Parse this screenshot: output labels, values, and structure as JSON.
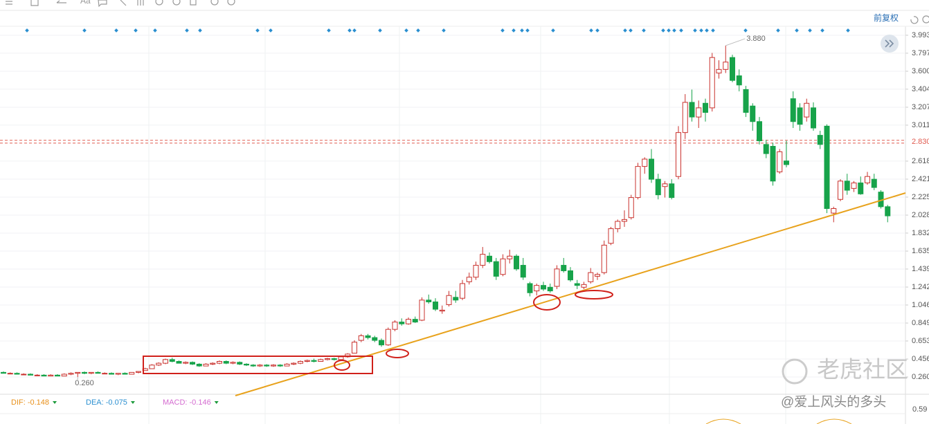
{
  "chart_data": {
    "type": "candlestick",
    "up_color": "#c9302c",
    "down_color": "#17a34a",
    "categories": [
      null,
      null,
      null,
      null,
      null,
      null,
      null,
      null,
      null,
      null,
      null,
      null,
      null,
      null,
      null,
      null,
      null,
      null,
      null,
      null,
      null,
      null,
      null,
      null,
      null,
      null,
      null,
      null,
      null,
      null,
      null,
      null,
      null,
      null,
      null,
      null,
      null,
      null,
      null,
      null,
      null,
      null,
      null,
      null,
      null,
      null,
      null,
      null,
      null,
      null,
      null,
      null,
      null,
      null,
      null,
      null,
      null,
      null,
      null,
      null,
      null,
      null,
      null,
      null,
      null,
      null,
      null,
      null,
      null,
      null,
      null,
      null,
      null,
      null,
      null,
      null,
      null,
      null,
      null,
      null,
      null,
      null,
      null,
      null,
      null,
      null,
      null,
      null,
      null,
      null,
      null,
      null,
      null,
      null,
      null,
      null,
      null,
      null,
      null,
      null,
      null,
      null,
      null,
      null,
      null,
      null,
      null,
      null,
      null,
      null,
      null,
      null,
      null,
      null,
      null,
      null,
      null,
      null,
      null,
      null,
      null,
      null,
      null,
      null,
      null,
      null,
      null,
      null,
      null,
      null,
      null,
      null
    ],
    "ohlc": [
      [
        0.31,
        0.32,
        0.3,
        0.3
      ],
      [
        0.3,
        0.31,
        0.29,
        0.3
      ],
      [
        0.3,
        0.31,
        0.29,
        0.29
      ],
      [
        0.29,
        0.3,
        0.28,
        0.29
      ],
      [
        0.29,
        0.3,
        0.28,
        0.28
      ],
      [
        0.28,
        0.29,
        0.27,
        0.28
      ],
      [
        0.28,
        0.29,
        0.27,
        0.27
      ],
      [
        0.27,
        0.29,
        0.27,
        0.28
      ],
      [
        0.28,
        0.29,
        0.27,
        0.27
      ],
      [
        0.27,
        0.3,
        0.27,
        0.29
      ],
      [
        0.29,
        0.31,
        0.28,
        0.3
      ],
      [
        0.3,
        0.31,
        0.26,
        0.31
      ],
      [
        0.31,
        0.32,
        0.29,
        0.3
      ],
      [
        0.3,
        0.31,
        0.29,
        0.31
      ],
      [
        0.31,
        0.32,
        0.3,
        0.3
      ],
      [
        0.3,
        0.31,
        0.29,
        0.3
      ],
      [
        0.3,
        0.31,
        0.29,
        0.29
      ],
      [
        0.29,
        0.3,
        0.28,
        0.3
      ],
      [
        0.3,
        0.31,
        0.29,
        0.29
      ],
      [
        0.29,
        0.31,
        0.29,
        0.31
      ],
      [
        0.31,
        0.32,
        0.3,
        0.32
      ],
      [
        0.33,
        0.36,
        0.33,
        0.35
      ],
      [
        0.35,
        0.4,
        0.35,
        0.39
      ],
      [
        0.39,
        0.42,
        0.38,
        0.41
      ],
      [
        0.41,
        0.46,
        0.4,
        0.45
      ],
      [
        0.45,
        0.47,
        0.42,
        0.43
      ],
      [
        0.43,
        0.44,
        0.41,
        0.41
      ],
      [
        0.41,
        0.43,
        0.4,
        0.42
      ],
      [
        0.42,
        0.43,
        0.39,
        0.4
      ],
      [
        0.4,
        0.41,
        0.37,
        0.38
      ],
      [
        0.38,
        0.41,
        0.38,
        0.4
      ],
      [
        0.4,
        0.42,
        0.39,
        0.41
      ],
      [
        0.41,
        0.44,
        0.4,
        0.43
      ],
      [
        0.43,
        0.44,
        0.4,
        0.41
      ],
      [
        0.41,
        0.43,
        0.4,
        0.42
      ],
      [
        0.42,
        0.43,
        0.39,
        0.4
      ],
      [
        0.4,
        0.41,
        0.38,
        0.39
      ],
      [
        0.39,
        0.4,
        0.37,
        0.38
      ],
      [
        0.38,
        0.4,
        0.37,
        0.39
      ],
      [
        0.39,
        0.4,
        0.37,
        0.38
      ],
      [
        0.38,
        0.4,
        0.37,
        0.39
      ],
      [
        0.39,
        0.4,
        0.37,
        0.38
      ],
      [
        0.38,
        0.41,
        0.38,
        0.4
      ],
      [
        0.4,
        0.42,
        0.39,
        0.41
      ],
      [
        0.41,
        0.44,
        0.4,
        0.43
      ],
      [
        0.43,
        0.45,
        0.42,
        0.44
      ],
      [
        0.44,
        0.46,
        0.42,
        0.43
      ],
      [
        0.43,
        0.46,
        0.43,
        0.45
      ],
      [
        0.45,
        0.47,
        0.44,
        0.46
      ],
      [
        0.46,
        0.47,
        0.44,
        0.45
      ],
      [
        0.45,
        0.49,
        0.44,
        0.48
      ],
      [
        0.48,
        0.52,
        0.47,
        0.51
      ],
      [
        0.52,
        0.66,
        0.52,
        0.64
      ],
      [
        0.66,
        0.73,
        0.64,
        0.71
      ],
      [
        0.71,
        0.73,
        0.67,
        0.69
      ],
      [
        0.69,
        0.71,
        0.64,
        0.66
      ],
      [
        0.66,
        0.68,
        0.59,
        0.61
      ],
      [
        0.61,
        0.8,
        0.6,
        0.78
      ],
      [
        0.78,
        0.88,
        0.76,
        0.86
      ],
      [
        0.86,
        0.9,
        0.82,
        0.84
      ],
      [
        0.84,
        0.91,
        0.83,
        0.89
      ],
      [
        0.89,
        0.92,
        0.85,
        0.86
      ],
      [
        0.88,
        1.13,
        0.87,
        1.1
      ],
      [
        1.1,
        1.16,
        1.06,
        1.08
      ],
      [
        1.08,
        1.12,
        0.98,
        1.0
      ],
      [
        0.98,
        1.04,
        0.95,
        0.99
      ],
      [
        1.05,
        1.2,
        1.03,
        1.15
      ],
      [
        1.13,
        1.2,
        1.07,
        1.1
      ],
      [
        1.12,
        1.32,
        1.1,
        1.28
      ],
      [
        1.3,
        1.4,
        1.27,
        1.35
      ],
      [
        1.35,
        1.52,
        1.32,
        1.48
      ],
      [
        1.48,
        1.68,
        1.45,
        1.6
      ],
      [
        1.58,
        1.62,
        1.5,
        1.52
      ],
      [
        1.52,
        1.56,
        1.32,
        1.36
      ],
      [
        1.38,
        1.6,
        1.36,
        1.55
      ],
      [
        1.55,
        1.65,
        1.5,
        1.58
      ],
      [
        1.58,
        1.6,
        1.42,
        1.44
      ],
      [
        1.48,
        1.56,
        1.32,
        1.35
      ],
      [
        1.28,
        1.3,
        1.14,
        1.18
      ],
      [
        1.2,
        1.28,
        1.15,
        1.26
      ],
      [
        1.26,
        1.3,
        1.2,
        1.22
      ],
      [
        1.24,
        1.28,
        1.18,
        1.2
      ],
      [
        1.25,
        1.48,
        1.22,
        1.44
      ],
      [
        1.48,
        1.56,
        1.4,
        1.42
      ],
      [
        1.42,
        1.46,
        1.3,
        1.32
      ],
      [
        1.28,
        1.32,
        1.22,
        1.26
      ],
      [
        1.24,
        1.3,
        1.22,
        1.27
      ],
      [
        1.3,
        1.45,
        1.28,
        1.4
      ],
      [
        1.36,
        1.4,
        1.32,
        1.38
      ],
      [
        1.4,
        1.75,
        1.38,
        1.7
      ],
      [
        1.72,
        1.9,
        1.7,
        1.88
      ],
      [
        1.88,
        1.98,
        1.84,
        1.96
      ],
      [
        1.96,
        2.08,
        1.9,
        1.98
      ],
      [
        2.0,
        2.25,
        1.98,
        2.22
      ],
      [
        2.22,
        2.6,
        2.2,
        2.56
      ],
      [
        2.56,
        2.66,
        2.48,
        2.64
      ],
      [
        2.64,
        2.75,
        2.38,
        2.42
      ],
      [
        2.42,
        2.48,
        2.2,
        2.25
      ],
      [
        2.34,
        2.4,
        2.22,
        2.37
      ],
      [
        2.37,
        2.42,
        2.2,
        2.22
      ],
      [
        2.45,
        3.0,
        2.42,
        2.93
      ],
      [
        2.93,
        3.35,
        2.86,
        3.26
      ],
      [
        3.26,
        3.4,
        3.05,
        3.1
      ],
      [
        3.1,
        3.28,
        2.98,
        3.2
      ],
      [
        3.25,
        3.3,
        3.05,
        3.15
      ],
      [
        3.2,
        3.8,
        3.16,
        3.75
      ],
      [
        3.58,
        3.72,
        3.52,
        3.62
      ],
      [
        3.62,
        3.88,
        3.58,
        3.7
      ],
      [
        3.75,
        3.78,
        3.48,
        3.5
      ],
      [
        3.55,
        3.62,
        3.38,
        3.45
      ],
      [
        3.4,
        3.44,
        3.1,
        3.15
      ],
      [
        3.22,
        3.25,
        2.95,
        3.05
      ],
      [
        3.05,
        3.1,
        2.8,
        2.84
      ],
      [
        2.8,
        2.85,
        2.65,
        2.7
      ],
      [
        2.78,
        2.82,
        2.35,
        2.4
      ],
      [
        2.5,
        2.75,
        2.48,
        2.72
      ],
      [
        2.62,
        2.84,
        2.55,
        2.58
      ],
      [
        3.3,
        3.38,
        2.98,
        3.05
      ],
      [
        3.2,
        3.25,
        2.95,
        3.02
      ],
      [
        3.1,
        3.3,
        3.05,
        3.25
      ],
      [
        3.2,
        3.26,
        2.95,
        2.98
      ],
      [
        2.9,
        2.95,
        2.75,
        2.8
      ],
      [
        3.0,
        3.02,
        2.05,
        2.1
      ],
      [
        2.05,
        2.12,
        1.95,
        2.1
      ],
      [
        2.2,
        2.42,
        2.18,
        2.4
      ],
      [
        2.4,
        2.48,
        2.25,
        2.3
      ],
      [
        2.32,
        2.4,
        2.28,
        2.38
      ],
      [
        2.38,
        2.45,
        2.25,
        2.26
      ],
      [
        2.38,
        2.5,
        2.36,
        2.45
      ],
      [
        2.42,
        2.48,
        2.3,
        2.33
      ],
      [
        2.28,
        2.3,
        2.1,
        2.12
      ],
      [
        2.12,
        2.14,
        1.95,
        2.02
      ]
    ],
    "ylim": [
      0.071,
      4.091
    ],
    "yticks": [
      3.993,
      3.797,
      {
        "value": 3.6,
        "label": "3.600"
      },
      3.404,
      3.207,
      3.011,
      2.618,
      2.421,
      2.225,
      2.028,
      1.832,
      1.635,
      1.439,
      1.242,
      1.046,
      0.849,
      0.653,
      0.456,
      {
        "value": 0.26,
        "label": "0.260"
      }
    ],
    "grid": true,
    "ref_line": {
      "value": 2.83,
      "label": "2.830",
      "color": "#e05a4f"
    },
    "max_label": {
      "value": 3.88,
      "label": "3.880"
    },
    "min_label": {
      "value": 0.26,
      "label": "0.260"
    },
    "indicators": [
      {
        "label": "DIF: -0.148",
        "color": "#e8901a"
      },
      {
        "label": "DEA: -0.075",
        "color": "#2b8fd0"
      },
      {
        "label": "MACD: -0.146",
        "color": "#d46bd0"
      }
    ],
    "sub_axis_label": "0.59"
  },
  "toolbar": {
    "font_icon": "Aa",
    "adjust": "前复权"
  },
  "watermark": {
    "brand": "老虎社区",
    "user": "@爱上风头的多头"
  }
}
